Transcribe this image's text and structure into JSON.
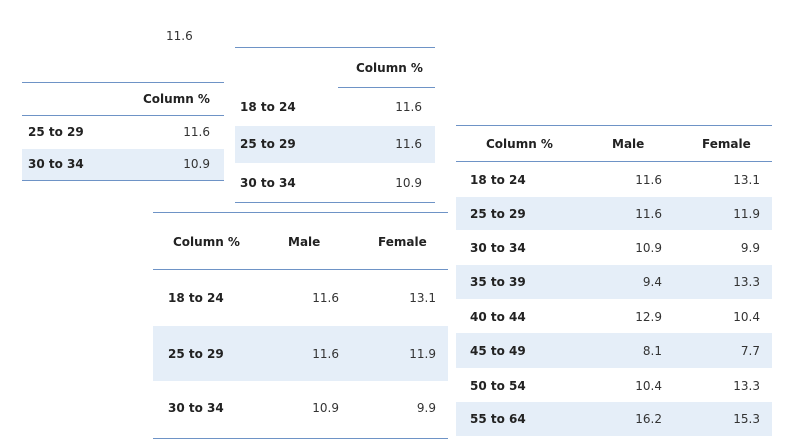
{
  "loose_value": "11.6",
  "table_a": {
    "header": "Column %",
    "rows": [
      {
        "label": "25 to 29",
        "value": "11.6"
      },
      {
        "label": "30 to 34",
        "value": "10.9"
      }
    ]
  },
  "table_b": {
    "header": "Column %",
    "rows": [
      {
        "label": "18 to 24",
        "value": "11.6"
      },
      {
        "label": "25 to 29",
        "value": "11.6"
      },
      {
        "label": "30 to 34",
        "value": "10.9"
      }
    ]
  },
  "table_c": {
    "headers": [
      "Column %",
      "Male",
      "Female"
    ],
    "rows": [
      {
        "label": "18 to 24",
        "male": "11.6",
        "female": "13.1"
      },
      {
        "label": "25 to 29",
        "male": "11.6",
        "female": "11.9"
      },
      {
        "label": "30 to 34",
        "male": "10.9",
        "female": "9.9"
      }
    ]
  },
  "table_d": {
    "headers": [
      "Column %",
      "Male",
      "Female"
    ],
    "rows": [
      {
        "label": "18 to 24",
        "male": "11.6",
        "female": "13.1"
      },
      {
        "label": "25 to 29",
        "male": "11.6",
        "female": "11.9"
      },
      {
        "label": "30 to 34",
        "male": "10.9",
        "female": "9.9"
      },
      {
        "label": "35 to 39",
        "male": "9.4",
        "female": "13.3"
      },
      {
        "label": "40 to 44",
        "male": "12.9",
        "female": "10.4"
      },
      {
        "label": "45 to 49",
        "male": "8.1",
        "female": "7.7"
      },
      {
        "label": "50 to 54",
        "male": "10.4",
        "female": "13.3"
      },
      {
        "label": "55 to 64",
        "male": "16.2",
        "female": "15.3"
      }
    ]
  }
}
